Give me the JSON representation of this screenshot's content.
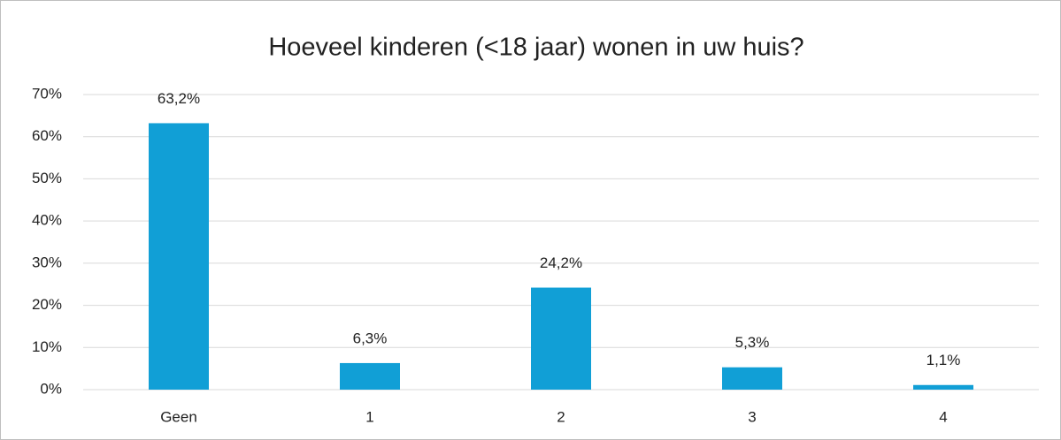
{
  "chart_data": {
    "type": "bar",
    "title": "Hoeveel kinderen (<18 jaar) wonen in uw huis?",
    "categories": [
      "Geen",
      "1",
      "2",
      "3",
      "4"
    ],
    "values": [
      63.2,
      6.3,
      24.2,
      5.3,
      1.1
    ],
    "value_labels": [
      "63,2%",
      "6,3%",
      "24,2%",
      "5,3%",
      "1,1%"
    ],
    "color": "#119fd6",
    "ylim": [
      0,
      70
    ],
    "yticks": [
      {
        "value": 0,
        "label": "0%"
      },
      {
        "value": 10,
        "label": "10%"
      },
      {
        "value": 20,
        "label": "20%"
      },
      {
        "value": 30,
        "label": "30%"
      },
      {
        "value": 40,
        "label": "40%"
      },
      {
        "value": 50,
        "label": "50%"
      },
      {
        "value": 60,
        "label": "60%"
      },
      {
        "value": 70,
        "label": "70%"
      }
    ],
    "grid": true
  }
}
